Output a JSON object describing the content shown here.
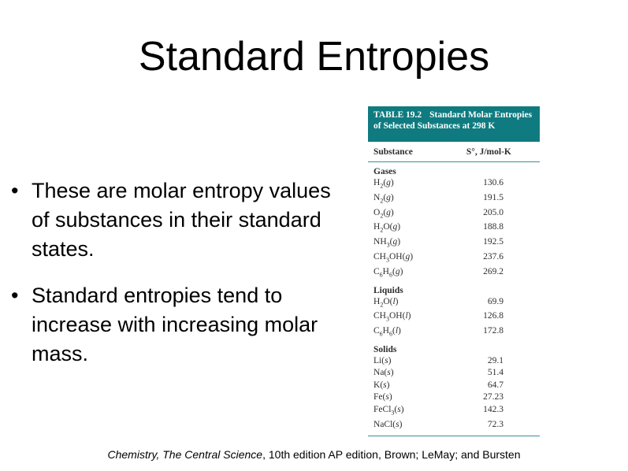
{
  "title": "Standard Entropies",
  "bullets": [
    "These are molar entropy values of substances in their standard states.",
    "Standard entropies tend to increase with increasing molar mass."
  ],
  "table": {
    "label": "TABLE 19.2",
    "caption": "Standard Molar Entropies of Selected Substances at 298 K",
    "col1": "Substance",
    "col2": "S°, J/mol-K",
    "groups": [
      {
        "name": "Gases",
        "rows": [
          {
            "substance": "H2(g)",
            "value": "130.6"
          },
          {
            "substance": "N2(g)",
            "value": "191.5"
          },
          {
            "substance": "O2(g)",
            "value": "205.0"
          },
          {
            "substance": "H2O(g)",
            "value": "188.8"
          },
          {
            "substance": "NH3(g)",
            "value": "192.5"
          },
          {
            "substance": "CH3OH(g)",
            "value": "237.6"
          },
          {
            "substance": "C6H6(g)",
            "value": "269.2"
          }
        ]
      },
      {
        "name": "Liquids",
        "rows": [
          {
            "substance": "H2O(l)",
            "value": "69.9"
          },
          {
            "substance": "CH3OH(l)",
            "value": "126.8"
          },
          {
            "substance": "C6H6(l)",
            "value": "172.8"
          }
        ]
      },
      {
        "name": "Solids",
        "rows": [
          {
            "substance": "Li(s)",
            "value": "29.1"
          },
          {
            "substance": "Na(s)",
            "value": "51.4"
          },
          {
            "substance": "K(s)",
            "value": "64.7"
          },
          {
            "substance": "Fe(s)",
            "value": "27.23"
          },
          {
            "substance": "FeCl3(s)",
            "value": "142.3"
          },
          {
            "substance": "NaCl(s)",
            "value": "72.3"
          }
        ]
      }
    ]
  },
  "footer": {
    "book": "Chemistry, The Central Science",
    "rest": ", 10th edition AP edition, Brown; LeMay; and Bursten"
  }
}
